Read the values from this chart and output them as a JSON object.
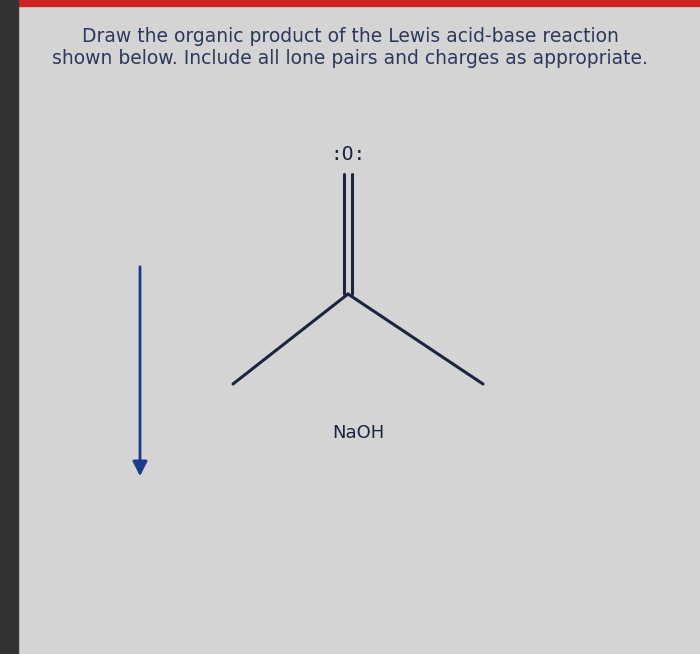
{
  "title_line1": "Draw the organic product of the Lewis acid-base reaction",
  "title_line2": "shown below. Include all lone pairs and charges as appropriate.",
  "background_color": "#d4d4d4",
  "text_color": "#2b3a5c",
  "bond_color": "#1a2540",
  "arrow_color": "#1a3a8a",
  "reagent_label": "NaOH",
  "oxygen_label": ":O:",
  "title_fontsize": 13.5,
  "molecule_fontsize": 14,
  "reagent_fontsize": 13,
  "red_bar_color": "#cc2222",
  "left_bar_color": "#333333"
}
